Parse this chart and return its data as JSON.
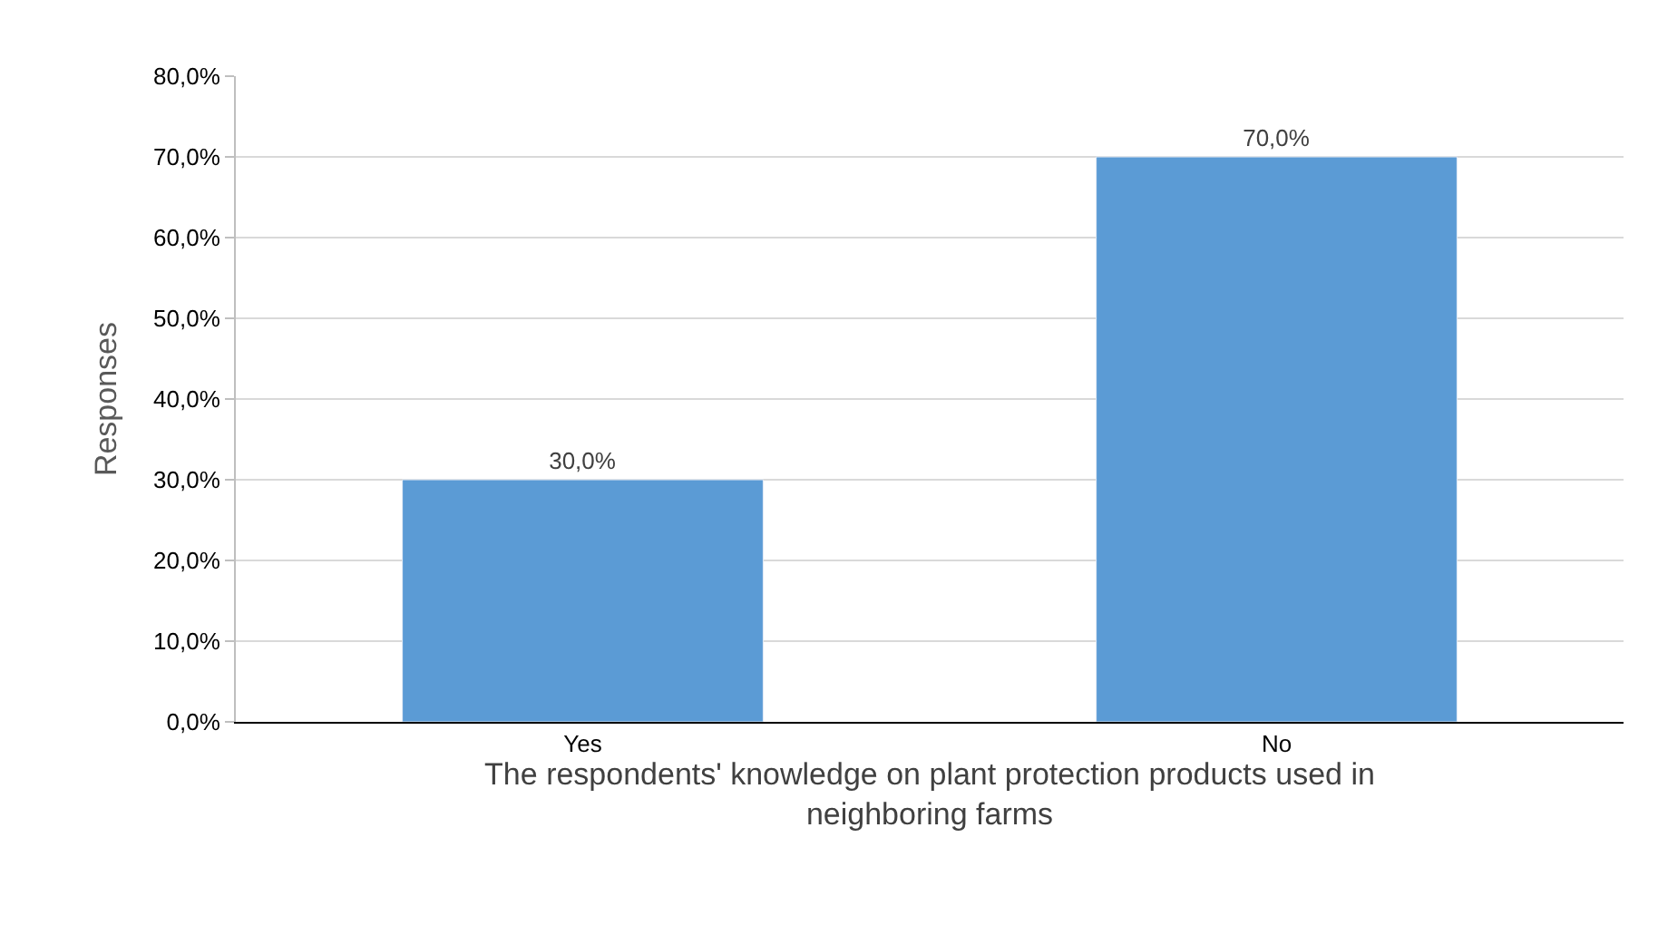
{
  "chart_data": {
    "type": "bar",
    "xlabel": "The respondents' knowledge on plant protection products used in neighboring farms",
    "ylabel": "Responses",
    "categories": [
      "Yes",
      "No"
    ],
    "values": [
      30,
      70
    ],
    "value_labels": [
      "30,0%",
      "70,0%"
    ],
    "color": "#5b9bd5",
    "ylim": [
      0,
      80
    ],
    "yticks": [
      {
        "value": 0,
        "label": "0,0%"
      },
      {
        "value": 10,
        "label": "10,0%"
      },
      {
        "value": 20,
        "label": "20,0%"
      },
      {
        "value": 30,
        "label": "30,0%"
      },
      {
        "value": 40,
        "label": "40,0%"
      },
      {
        "value": 50,
        "label": "50,0%"
      },
      {
        "value": 60,
        "label": "60,0%"
      },
      {
        "value": 70,
        "label": "70,0%"
      },
      {
        "value": 80,
        "label": "80,0%"
      }
    ],
    "grid": "y"
  }
}
